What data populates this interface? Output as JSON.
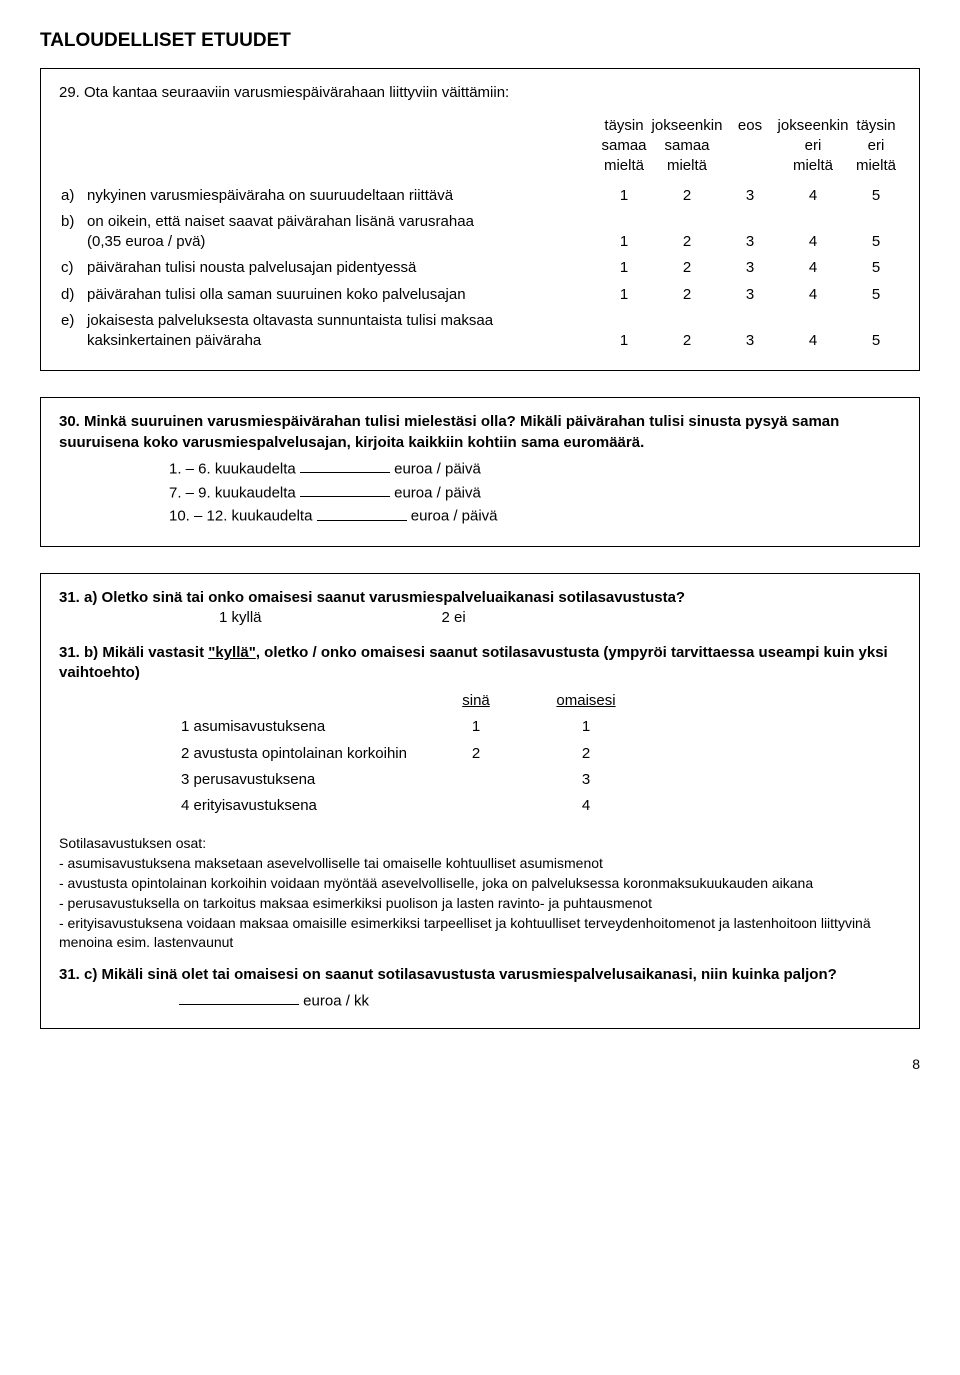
{
  "section_title": "TALOUDELLISET ETUUDET",
  "page_number": "8",
  "q29": {
    "intro": "29. Ota kantaa seuraaviin varusmiespäivärahaan liittyviin väittämiin:",
    "headers": [
      "täysin\nsamaa\nmieltä",
      "jokseenkin\nsamaa\nmieltä",
      "eos",
      "jokseenkin\neri\nmieltä",
      "täysin\neri\nmieltä"
    ],
    "rows": [
      {
        "l": "a)",
        "t": "nykyinen varusmiespäiväraha on suuruudeltaan riittävä",
        "v": [
          "1",
          "2",
          "3",
          "4",
          "5"
        ]
      },
      {
        "l": "b)",
        "t": "on oikein, että naiset saavat päivärahan lisänä varusrahaa\n(0,35 euroa / pvä)",
        "v": [
          "1",
          "2",
          "3",
          "4",
          "5"
        ]
      },
      {
        "l": "c)",
        "t": "päivärahan tulisi nousta palvelusajan pidentyessä",
        "v": [
          "1",
          "2",
          "3",
          "4",
          "5"
        ]
      },
      {
        "l": "d)",
        "t": "päivärahan tulisi olla saman suuruinen koko palvelusajan",
        "v": [
          "1",
          "2",
          "3",
          "4",
          "5"
        ]
      },
      {
        "l": "e)",
        "t": "jokaisesta palveluksesta oltavasta sunnuntaista tulisi maksaa\nkaksinkertainen päiväraha",
        "v": [
          "1",
          "2",
          "3",
          "4",
          "5"
        ]
      }
    ]
  },
  "q30": {
    "text": "30. Minkä suuruinen varusmiespäivärahan tulisi mielestäsi olla? Mikäli päivärahan tulisi sinusta pysyä saman suuruisena koko varusmiespalvelusajan, kirjoita kaikkiin kohtiin sama euromäärä.",
    "lines": [
      {
        "pre": "1. – 6. kuukaudelta",
        "post": "euroa / päivä"
      },
      {
        "pre": "7. – 9. kuukaudelta",
        "post": "euroa / päivä"
      },
      {
        "pre": "10. – 12. kuukaudelta",
        "post": "euroa / päivä"
      }
    ]
  },
  "q31": {
    "a": {
      "text": "31. a) Oletko sinä tai onko omaisesi saanut varusmiespalveluaikanasi sotilasavustusta?",
      "opt1": "1 kyllä",
      "opt2": "2 ei"
    },
    "b": {
      "text_pre": "31. b) Mikäli vastasit ",
      "kylla": "\"kyllä\"",
      "text_post": ", oletko / onko omaisesi saanut sotilasavustusta (ympyröi tarvittaessa useampi kuin yksi vaihtoehto)",
      "col_sina": "sinä",
      "col_omaisesi": "omaisesi",
      "rows": [
        {
          "t": "1 asumisavustuksena",
          "a": "1",
          "b": "1"
        },
        {
          "t": "2 avustusta opintolainan korkoihin",
          "a": "2",
          "b": "2"
        },
        {
          "t": "3 perusavustuksena",
          "a": "",
          "b": "3"
        },
        {
          "t": "4 erityisavustuksena",
          "a": "",
          "b": "4"
        }
      ]
    },
    "notes_title": "Sotilasavustuksen osat:",
    "notes": [
      "- asumisavustuksena maksetaan asevelvolliselle tai omaiselle kohtuulliset asumismenot",
      "- avustusta opintolainan korkoihin voidaan myöntää asevelvolliselle, joka on palveluksessa koronmaksukuukauden aikana",
      "- perusavustuksella on tarkoitus maksaa esimerkiksi puolison ja lasten ravinto- ja puhtausmenot",
      "- erityisavustuksena voidaan maksaa omaisille esimerkiksi tarpeelliset ja kohtuulliset terveydenhoitomenot ja lastenhoitoon liittyvinä menoina esim. lastenvaunut"
    ],
    "c": {
      "text": "31. c) Mikäli sinä olet tai omaisesi on saanut sotilasavustusta varusmiespalvelusaikanasi, niin kuinka paljon?",
      "unit": "euroa / kk"
    }
  }
}
